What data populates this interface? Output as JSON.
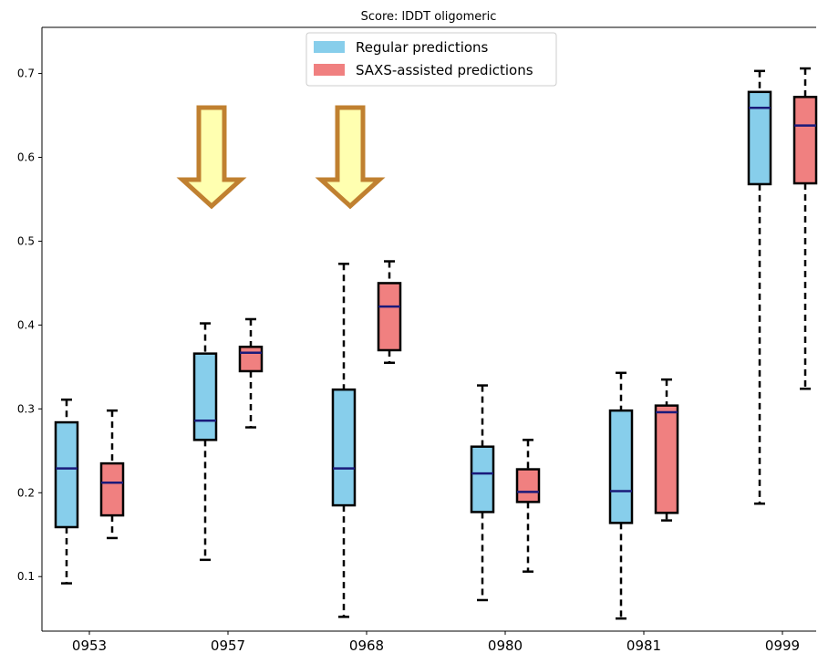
{
  "chart_data": {
    "type": "box",
    "title": "Score: lDDT oligomeric",
    "xlabel": "",
    "ylabel": "",
    "ylim": [
      0.035,
      0.755
    ],
    "yticks": [
      0.1,
      0.2,
      0.3,
      0.4,
      0.5,
      0.6,
      0.7
    ],
    "ytick_labels": [
      "0.1",
      "0.2",
      "0.3",
      "0.4",
      "0.5",
      "0.6",
      "0.7"
    ],
    "categories": [
      "0953",
      "0957",
      "0968",
      "0980",
      "0981",
      "0999"
    ],
    "grid": false,
    "legend_position": "top-center",
    "series": [
      {
        "name": "Regular predictions",
        "color": "#87ceeb",
        "boxes": [
          {
            "whislo": 0.092,
            "q1": 0.159,
            "med": 0.229,
            "q3": 0.284,
            "whishi": 0.311
          },
          {
            "whislo": 0.12,
            "q1": 0.263,
            "med": 0.286,
            "q3": 0.366,
            "whishi": 0.402
          },
          {
            "whislo": 0.052,
            "q1": 0.185,
            "med": 0.229,
            "q3": 0.323,
            "whishi": 0.473
          },
          {
            "whislo": 0.072,
            "q1": 0.177,
            "med": 0.223,
            "q3": 0.255,
            "whishi": 0.328
          },
          {
            "whislo": 0.05,
            "q1": 0.164,
            "med": 0.202,
            "q3": 0.298,
            "whishi": 0.343
          },
          {
            "whislo": 0.187,
            "q1": 0.568,
            "med": 0.659,
            "q3": 0.678,
            "whishi": 0.703
          }
        ]
      },
      {
        "name": "SAXS-assisted predictions",
        "color": "#f08080",
        "boxes": [
          {
            "whislo": 0.146,
            "q1": 0.173,
            "med": 0.212,
            "q3": 0.235,
            "whishi": 0.298
          },
          {
            "whislo": 0.278,
            "q1": 0.345,
            "med": 0.367,
            "q3": 0.374,
            "whishi": 0.407
          },
          {
            "whislo": 0.355,
            "q1": 0.37,
            "med": 0.422,
            "q3": 0.45,
            "whishi": 0.476
          },
          {
            "whislo": 0.106,
            "q1": 0.189,
            "med": 0.201,
            "q3": 0.228,
            "whishi": 0.263
          },
          {
            "whislo": 0.167,
            "q1": 0.176,
            "med": 0.296,
            "q3": 0.304,
            "whishi": 0.335
          },
          {
            "whislo": 0.324,
            "q1": 0.569,
            "med": 0.638,
            "q3": 0.672,
            "whishi": 0.706
          }
        ]
      }
    ],
    "median_color": "#1a1a7a",
    "annotations": [
      {
        "type": "arrow-down",
        "category": "0957",
        "fill": "#ffffb0",
        "stroke": "#c08030"
      },
      {
        "type": "arrow-down",
        "category": "0968",
        "fill": "#ffffb0",
        "stroke": "#c08030"
      }
    ]
  }
}
